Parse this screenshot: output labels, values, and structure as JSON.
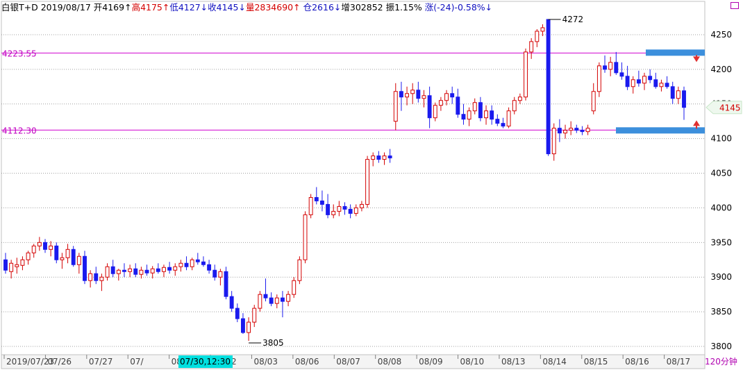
{
  "header": {
    "instrument": "白银T+D",
    "date": "2019/08/17",
    "open": "开4169↑",
    "high": "高4175↑",
    "low": "低4127↓",
    "close": "收4145↓",
    "volume": "量2834690↑",
    "position": "仓2616↓",
    "increase": "增302852",
    "amplitude": "振1.15%",
    "change": "涨(-24)-0.58%↓"
  },
  "period_label": "120分钟",
  "colors": {
    "up": "#d40000",
    "down": "#1a1aee",
    "level_line": "#d000d0",
    "level_label": "#c000c0",
    "zone_bar": "#3c8fdc",
    "arrow": "#e03030",
    "grid": "#a0a0a0",
    "cursor_date_bg": "#00e0e0",
    "highlight_date_bg": "#bcd8f4"
  },
  "chart_data": {
    "type": "candlestick",
    "title": "",
    "y_axis": {
      "range": [
        3800,
        4280
      ],
      "ticks": [
        3800,
        3850,
        3900,
        3950,
        4000,
        4050,
        4100,
        4150,
        4200,
        4250
      ],
      "gridlines": true
    },
    "x_labels": [
      "2019/07/23",
      "07/26",
      "07/27",
      "07/",
      "08/01",
      "08/02",
      "08/03",
      "08/06",
      "08/07",
      "08/08",
      "08/09",
      "08/10",
      "08/13",
      "08/14",
      "08/15",
      "08/16",
      "08/17"
    ],
    "cursor_date": "07/30,12:30",
    "last_price_label": "4145",
    "horizontal_levels": [
      {
        "value": 4223.55,
        "label": "4223.55"
      },
      {
        "value": 4112.3,
        "label": "4112.30"
      }
    ],
    "annotations": [
      {
        "text": "4272",
        "value": 4272
      },
      {
        "text": "3805",
        "value": 3805
      }
    ],
    "candles": [
      [
        3925,
        3935,
        3905,
        3910
      ],
      [
        3908,
        3925,
        3898,
        3920
      ],
      [
        3915,
        3928,
        3905,
        3918
      ],
      [
        3917,
        3930,
        3910,
        3925
      ],
      [
        3925,
        3938,
        3918,
        3935
      ],
      [
        3935,
        3948,
        3928,
        3945
      ],
      [
        3945,
        3958,
        3938,
        3950
      ],
      [
        3950,
        3955,
        3935,
        3940
      ],
      [
        3940,
        3952,
        3930,
        3945
      ],
      [
        3945,
        3950,
        3920,
        3925
      ],
      [
        3925,
        3935,
        3912,
        3928
      ],
      [
        3928,
        3948,
        3920,
        3940
      ],
      [
        3940,
        3945,
        3915,
        3918
      ],
      [
        3918,
        3935,
        3905,
        3930
      ],
      [
        3930,
        3938,
        3890,
        3895
      ],
      [
        3895,
        3910,
        3885,
        3905
      ],
      [
        3905,
        3915,
        3890,
        3895
      ],
      [
        3895,
        3905,
        3880,
        3900
      ],
      [
        3900,
        3920,
        3895,
        3915
      ],
      [
        3915,
        3925,
        3900,
        3905
      ],
      [
        3905,
        3912,
        3895,
        3910
      ],
      [
        3910,
        3920,
        3900,
        3908
      ],
      [
        3908,
        3918,
        3900,
        3912
      ],
      [
        3912,
        3920,
        3900,
        3904
      ],
      [
        3904,
        3915,
        3898,
        3910
      ],
      [
        3910,
        3918,
        3902,
        3906
      ],
      [
        3906,
        3916,
        3898,
        3912
      ],
      [
        3912,
        3920,
        3905,
        3908
      ],
      [
        3908,
        3918,
        3900,
        3914
      ],
      [
        3914,
        3922,
        3905,
        3910
      ],
      [
        3910,
        3920,
        3902,
        3915
      ],
      [
        3915,
        3925,
        3908,
        3920
      ],
      [
        3920,
        3930,
        3910,
        3915
      ],
      [
        3915,
        3928,
        3910,
        3925
      ],
      [
        3925,
        3935,
        3918,
        3922
      ],
      [
        3922,
        3930,
        3915,
        3918
      ],
      [
        3918,
        3925,
        3905,
        3910
      ],
      [
        3910,
        3918,
        3895,
        3900
      ],
      [
        3900,
        3912,
        3888,
        3908
      ],
      [
        3908,
        3915,
        3868,
        3872
      ],
      [
        3872,
        3880,
        3850,
        3855
      ],
      [
        3855,
        3862,
        3835,
        3840
      ],
      [
        3840,
        3848,
        3818,
        3820
      ],
      [
        3820,
        3842,
        3808,
        3835
      ],
      [
        3835,
        3860,
        3828,
        3855
      ],
      [
        3855,
        3880,
        3850,
        3875
      ],
      [
        3875,
        3898,
        3865,
        3870
      ],
      [
        3870,
        3878,
        3858,
        3862
      ],
      [
        3862,
        3875,
        3855,
        3870
      ],
      [
        3870,
        3880,
        3842,
        3865
      ],
      [
        3865,
        3880,
        3858,
        3875
      ],
      [
        3875,
        3900,
        3870,
        3895
      ],
      [
        3895,
        3930,
        3890,
        3925
      ],
      [
        3925,
        3995,
        3920,
        3990
      ],
      [
        3990,
        4020,
        3985,
        4015
      ],
      [
        4015,
        4030,
        4005,
        4010
      ],
      [
        4010,
        4025,
        3995,
        4005
      ],
      [
        4005,
        4020,
        3985,
        3990
      ],
      [
        3990,
        4005,
        3985,
        3995
      ],
      [
        3995,
        4010,
        3988,
        4002
      ],
      [
        4002,
        4008,
        3990,
        3998
      ],
      [
        3998,
        4005,
        3985,
        3992
      ],
      [
        3992,
        4005,
        3988,
        4000
      ],
      [
        4000,
        4010,
        3995,
        4005
      ],
      [
        4005,
        4075,
        4000,
        4070
      ],
      [
        4070,
        4080,
        4060,
        4075
      ],
      [
        4075,
        4082,
        4065,
        4070
      ],
      [
        4070,
        4080,
        4062,
        4075
      ],
      [
        4075,
        4085,
        4065,
        4072
      ],
      [
        4125,
        4180,
        4112,
        4168
      ],
      [
        4168,
        4182,
        4140,
        4160
      ],
      [
        4160,
        4175,
        4148,
        4165
      ],
      [
        4165,
        4180,
        4150,
        4170
      ],
      [
        4170,
        4182,
        4152,
        4158
      ],
      [
        4158,
        4170,
        4145,
        4162
      ],
      [
        4162,
        4175,
        4115,
        4130
      ],
      [
        4130,
        4152,
        4125,
        4148
      ],
      [
        4148,
        4160,
        4140,
        4155
      ],
      [
        4155,
        4170,
        4148,
        4165
      ],
      [
        4165,
        4175,
        4150,
        4160
      ],
      [
        4160,
        4172,
        4130,
        4135
      ],
      [
        4135,
        4150,
        4120,
        4128
      ],
      [
        4128,
        4145,
        4118,
        4140
      ],
      [
        4140,
        4158,
        4135,
        4152
      ],
      [
        4152,
        4160,
        4125,
        4130
      ],
      [
        4130,
        4148,
        4120,
        4140
      ],
      [
        4140,
        4148,
        4120,
        4128
      ],
      [
        4128,
        4135,
        4118,
        4122
      ],
      [
        4122,
        4130,
        4115,
        4118
      ],
      [
        4118,
        4145,
        4115,
        4140
      ],
      [
        4140,
        4160,
        4135,
        4155
      ],
      [
        4155,
        4165,
        4150,
        4160
      ],
      [
        4160,
        4230,
        4155,
        4225
      ],
      [
        4225,
        4245,
        4215,
        4240
      ],
      [
        4240,
        4258,
        4232,
        4255
      ],
      [
        4255,
        4265,
        4248,
        4260
      ],
      [
        4272,
        4272,
        4075,
        4078
      ],
      [
        4078,
        4122,
        4068,
        4115
      ],
      [
        4115,
        4128,
        4095,
        4108
      ],
      [
        4108,
        4120,
        4100,
        4112
      ],
      [
        4112,
        4125,
        4105,
        4115
      ],
      [
        4115,
        4120,
        4108,
        4112
      ],
      [
        4112,
        4118,
        4105,
        4110
      ],
      [
        4110,
        4120,
        4105,
        4115
      ],
      [
        4140,
        4180,
        4135,
        4168
      ],
      [
        4168,
        4210,
        4160,
        4205
      ],
      [
        4205,
        4220,
        4195,
        4200
      ],
      [
        4200,
        4218,
        4190,
        4210
      ],
      [
        4210,
        4225,
        4192,
        4195
      ],
      [
        4195,
        4210,
        4185,
        4190
      ],
      [
        4190,
        4205,
        4170,
        4175
      ],
      [
        4175,
        4190,
        4165,
        4185
      ],
      [
        4185,
        4198,
        4175,
        4180
      ],
      [
        4180,
        4195,
        4170,
        4190
      ],
      [
        4190,
        4200,
        4180,
        4185
      ],
      [
        4185,
        4195,
        4172,
        4175
      ],
      [
        4175,
        4185,
        4168,
        4180
      ],
      [
        4180,
        4190,
        4172,
        4175
      ],
      [
        4175,
        4182,
        4150,
        4158
      ],
      [
        4158,
        4175,
        4150,
        4169
      ],
      [
        4169,
        4175,
        4127,
        4145
      ]
    ]
  }
}
